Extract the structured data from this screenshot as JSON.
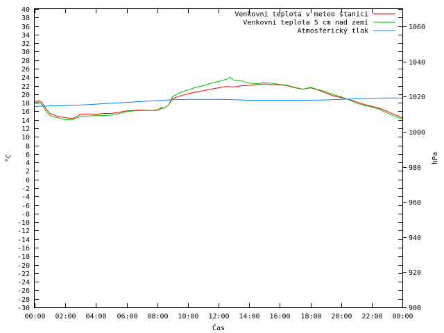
{
  "chart_data": {
    "type": "line",
    "title": "",
    "xlabel": "Čas",
    "ylabel": "°C",
    "y2label": "hPa",
    "xticks": [
      "00:00",
      "02:00",
      "04:00",
      "06:00",
      "08:00",
      "10:00",
      "12:00",
      "14:00",
      "16:00",
      "18:00",
      "20:00",
      "22:00",
      "00:00"
    ],
    "xlim_hours": [
      0,
      24
    ],
    "ylim": [
      -30,
      40
    ],
    "y2lim": [
      900,
      1070
    ],
    "yticks": [
      -30,
      -28,
      -26,
      -24,
      -22,
      -20,
      -18,
      -16,
      -14,
      -12,
      -10,
      -8,
      -6,
      -4,
      -2,
      0,
      2,
      4,
      6,
      8,
      10,
      12,
      14,
      16,
      18,
      20,
      22,
      24,
      26,
      28,
      30,
      32,
      34,
      36,
      38,
      40
    ],
    "y2ticks": [
      900,
      920,
      940,
      960,
      980,
      1000,
      1020,
      1040,
      1060
    ],
    "legend_position": "top-right",
    "grid": false,
    "series": [
      {
        "name": "Venkovní teplota v meteo stanici",
        "color": "#ff0000",
        "axis": "left",
        "x": [
          0,
          0.25,
          0.5,
          0.75,
          1.0,
          1.5,
          2.0,
          2.5,
          3.0,
          3.5,
          4.0,
          4.5,
          5.0,
          5.5,
          6.0,
          6.5,
          7.0,
          7.5,
          8.0,
          8.25,
          8.5,
          8.75,
          9.0,
          9.5,
          10.0,
          10.5,
          11.0,
          11.5,
          12.0,
          12.5,
          13.0,
          13.5,
          14.0,
          14.5,
          15.0,
          15.5,
          16.0,
          16.5,
          17.0,
          17.5,
          18.0,
          18.5,
          19.0,
          19.5,
          20.0,
          20.5,
          21.0,
          21.5,
          22.0,
          22.5,
          23.0,
          23.5,
          24.0
        ],
        "y": [
          18.3,
          18.5,
          18.0,
          16.5,
          15.5,
          14.8,
          14.5,
          14.3,
          15.3,
          15.4,
          15.3,
          15.5,
          15.5,
          15.8,
          16.1,
          16.2,
          16.3,
          16.2,
          16.3,
          16.8,
          16.8,
          17.5,
          19.0,
          19.6,
          20.1,
          20.5,
          20.8,
          21.2,
          21.5,
          21.8,
          21.7,
          22.0,
          22.1,
          22.3,
          22.4,
          22.3,
          22.2,
          22.0,
          21.5,
          21.2,
          21.5,
          21.0,
          20.3,
          19.6,
          19.2,
          18.8,
          18.2,
          17.6,
          17.2,
          16.7,
          16.0,
          15.2,
          14.5
        ]
      },
      {
        "name": "Venkovní teplota 5 cm nad zemí",
        "color": "#00c000",
        "axis": "left",
        "x": [
          0,
          0.25,
          0.5,
          0.75,
          1.0,
          1.5,
          2.0,
          2.5,
          3.0,
          3.5,
          4.0,
          4.5,
          5.0,
          5.5,
          6.0,
          6.5,
          7.0,
          7.5,
          8.0,
          8.25,
          8.5,
          8.75,
          9.0,
          9.5,
          10.0,
          10.5,
          11.0,
          11.5,
          12.0,
          12.5,
          12.75,
          13.0,
          13.5,
          14.0,
          14.5,
          15.0,
          15.5,
          16.0,
          16.5,
          17.0,
          17.5,
          18.0,
          18.5,
          19.0,
          19.5,
          20.0,
          20.5,
          21.0,
          21.5,
          22.0,
          22.5,
          23.0,
          23.5,
          24.0
        ],
        "y": [
          18.0,
          18.2,
          17.5,
          16.0,
          15.0,
          14.5,
          14.0,
          14.1,
          14.8,
          14.9,
          15.0,
          15.0,
          15.1,
          15.5,
          15.9,
          16.1,
          16.2,
          16.2,
          16.2,
          16.6,
          16.8,
          17.5,
          19.5,
          20.4,
          21.0,
          21.6,
          22.0,
          22.6,
          23.0,
          23.5,
          24.0,
          23.3,
          23.1,
          22.6,
          22.5,
          22.7,
          22.6,
          22.3,
          22.1,
          21.6,
          21.2,
          21.6,
          21.1,
          20.6,
          19.9,
          19.4,
          18.7,
          17.9,
          17.4,
          17.0,
          16.5,
          15.6,
          14.8,
          14.2
        ]
      },
      {
        "name": "Atmosférický tlak",
        "color": "#0080ff",
        "axis": "right",
        "x": [
          0,
          1,
          2,
          3,
          4,
          5,
          6,
          7,
          8,
          9,
          10,
          11,
          12,
          13,
          14,
          15,
          16,
          17,
          18,
          19,
          20,
          21,
          22,
          23,
          24
        ],
        "y": [
          1014.5,
          1014.8,
          1015.0,
          1015.3,
          1015.8,
          1016.3,
          1016.8,
          1017.3,
          1017.8,
          1018.3,
          1018.5,
          1018.5,
          1018.5,
          1018.3,
          1018.0,
          1018.0,
          1018.0,
          1018.0,
          1018.0,
          1018.2,
          1018.5,
          1018.8,
          1019.2,
          1019.3,
          1019.3
        ]
      }
    ]
  }
}
